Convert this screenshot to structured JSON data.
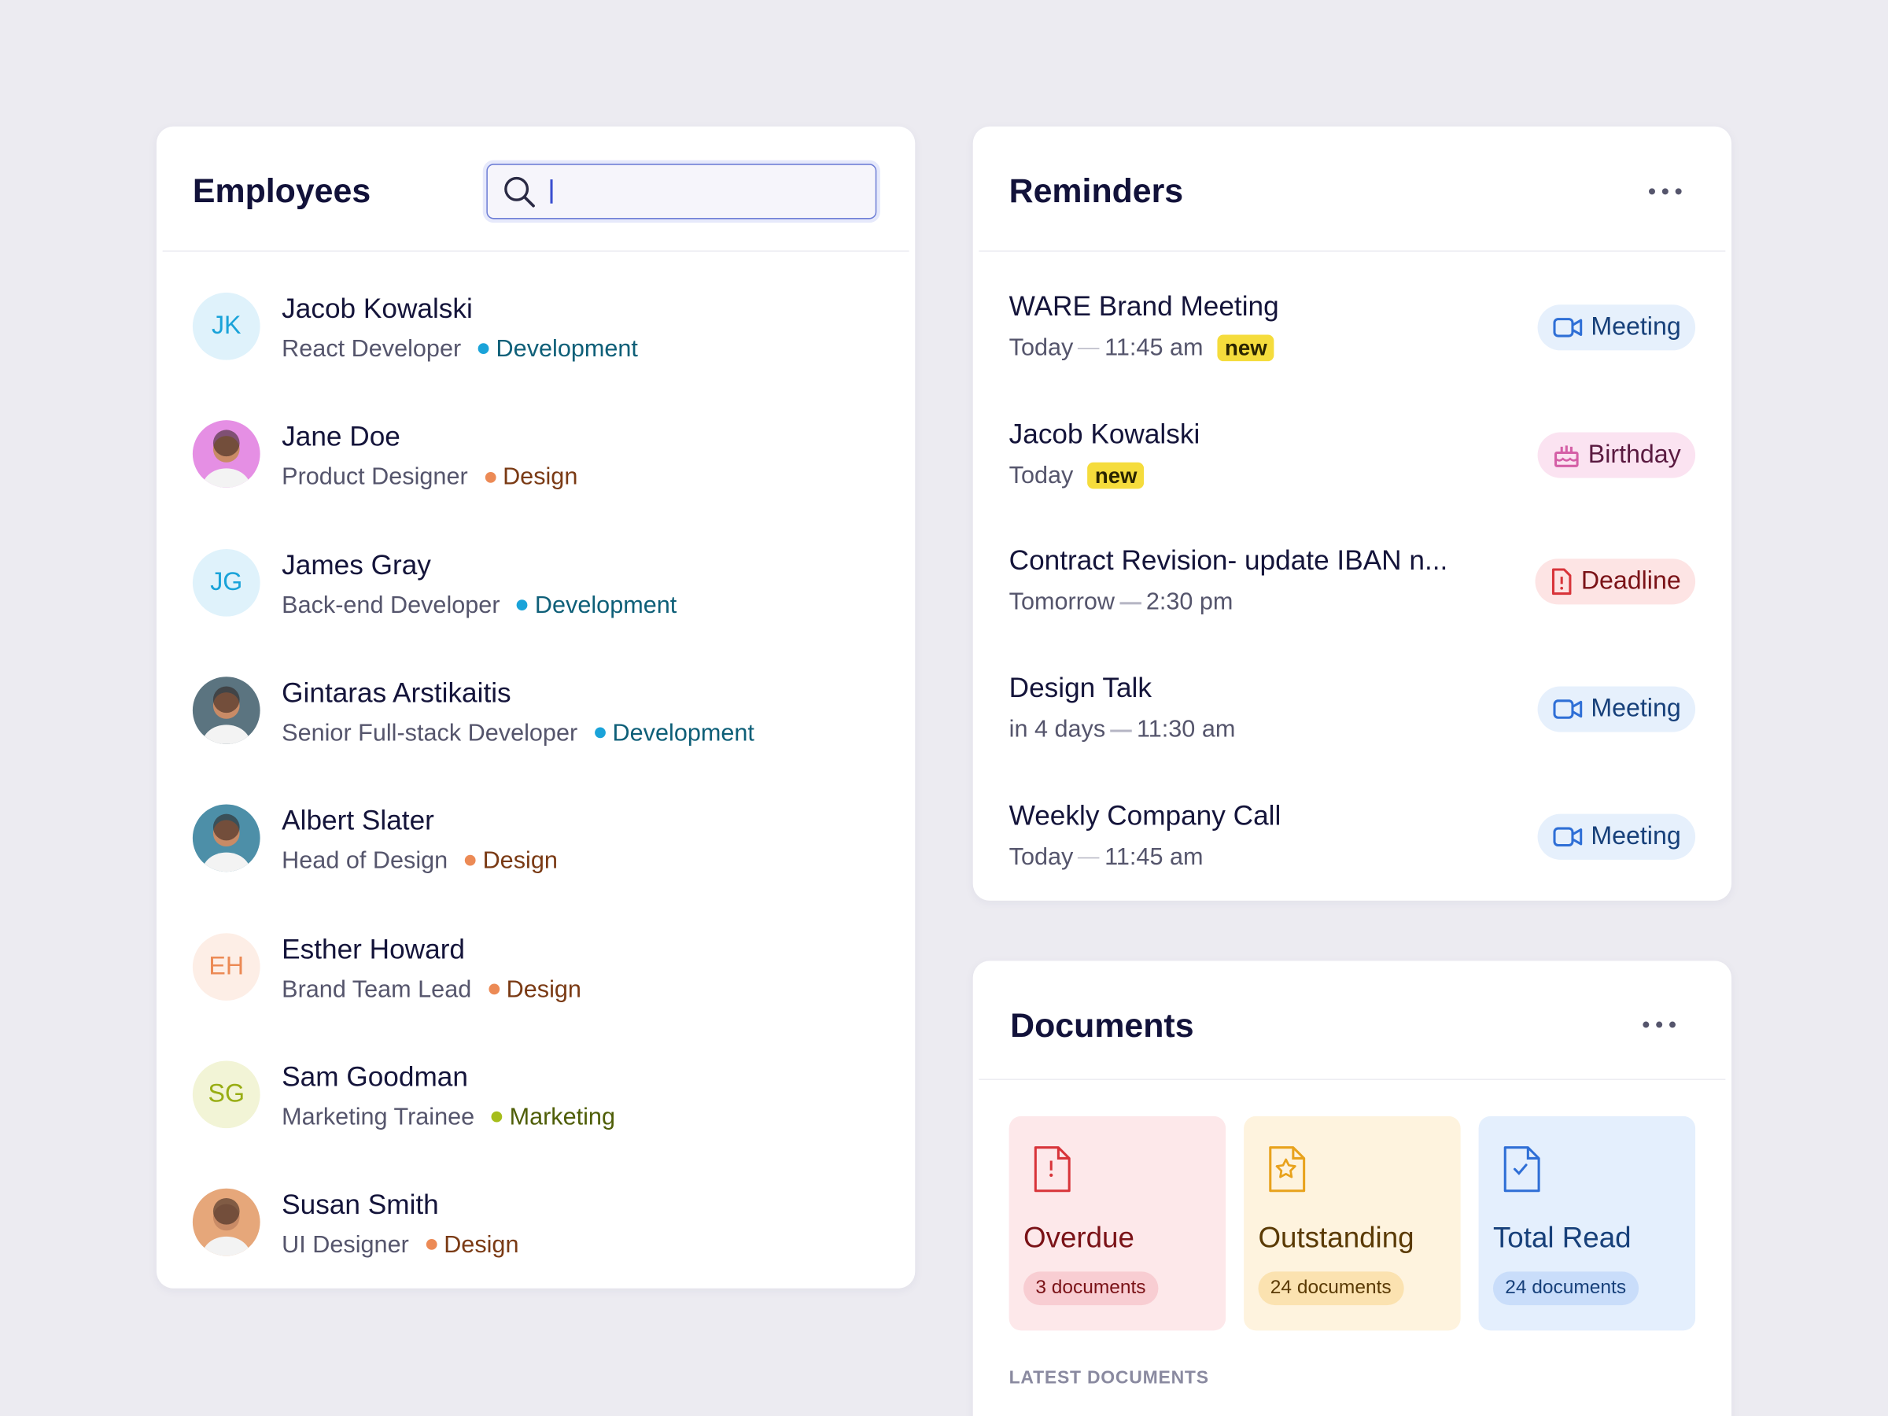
{
  "employees": {
    "title": "Employees",
    "items": [
      {
        "initials": "JK",
        "name": "Jacob Kowalski",
        "role": "React Developer",
        "department": "Development",
        "color": "#1aa3d9"
      },
      {
        "name": "Jane Doe",
        "role": "Product Designer",
        "department": "Design",
        "color": "#ec8a55"
      },
      {
        "initials": "JG",
        "name": "James Gray",
        "role": "Back-end Developer",
        "department": "Development",
        "color": "#1aa3d9"
      },
      {
        "name": "Gintaras Arstikaitis",
        "role": "Senior Full-stack Developer",
        "department": "Development",
        "color": "#1aa3d9"
      },
      {
        "name": "Albert Slater",
        "role": "Head of Design",
        "department": "Design",
        "color": "#ec8a55"
      },
      {
        "initials": "EH",
        "name": "Esther Howard",
        "role": "Brand Team Lead",
        "department": "Design",
        "color": "#ec8a55"
      },
      {
        "initials": "SG",
        "name": "Sam Goodman",
        "role": "Marketing Trainee",
        "department": "Marketing",
        "color": "#a6bd1c"
      },
      {
        "name": "Susan Smith",
        "role": "UI Designer",
        "department": "Design",
        "color": "#ec8a55"
      }
    ]
  },
  "reminders": {
    "title": "Reminders",
    "items": [
      {
        "title": "WARE Brand Meeting",
        "when": "Today",
        "time": "11:45 am",
        "badge": "new",
        "tag": "Meeting"
      },
      {
        "title": "Jacob Kowalski",
        "when": "Today",
        "badge": "new",
        "tag": "Birthday"
      },
      {
        "title": "Contract Revision- update IBAN n...",
        "when": "Tomorrow",
        "time": "2:30 pm",
        "tag": "Deadline"
      },
      {
        "title": "Design Talk",
        "when": "in 4 days",
        "time": "11:30 am",
        "tag": "Meeting"
      },
      {
        "title": "Weekly Company  Call",
        "when": "Today",
        "time": "11:45 am",
        "tag": "Meeting"
      }
    ]
  },
  "documents": {
    "title": "Documents",
    "cards": [
      {
        "label": "Overdue",
        "count": "3 documents"
      },
      {
        "label": "Outstanding",
        "count": "24 documents"
      },
      {
        "label": "Total Read",
        "count": "24 documents"
      }
    ],
    "section_label": "LATEST DOCUMENTS"
  }
}
